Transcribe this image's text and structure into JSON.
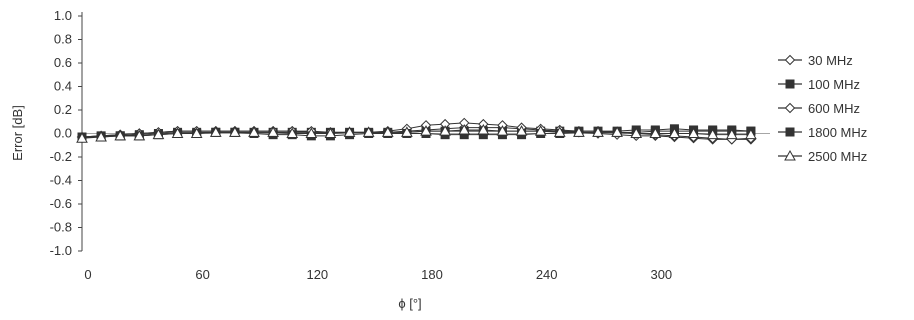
{
  "chart_data": {
    "type": "line",
    "xlabel": "ϕ [°]",
    "ylabel": "Error [dB]",
    "xlim": [
      0,
      360
    ],
    "ylim": [
      -1.0,
      1.0
    ],
    "x_ticks": [
      0,
      60,
      120,
      180,
      240,
      300
    ],
    "x_tick_labels": [
      "0",
      "60",
      "120",
      "180",
      "240",
      "300"
    ],
    "y_ticks": [
      1.0,
      0.8,
      0.6,
      0.4,
      0.2,
      0.0,
      -0.2,
      -0.4,
      -0.6,
      -0.8,
      -1.0
    ],
    "y_tick_labels": [
      "1.0",
      "0.8",
      "0.6",
      "0.4",
      "0.2",
      "0.0",
      "-0.2",
      "-0.4",
      "-0.6",
      "-0.8",
      "-1.0"
    ],
    "grid": false,
    "legend_position": "right",
    "x": [
      0,
      10,
      20,
      30,
      40,
      50,
      60,
      70,
      80,
      90,
      100,
      110,
      120,
      130,
      140,
      150,
      160,
      170,
      180,
      190,
      200,
      210,
      220,
      230,
      240,
      250,
      260,
      270,
      280,
      290,
      300,
      310,
      320,
      330,
      340,
      350
    ],
    "series": [
      {
        "name": "30 MHz",
        "marker": "diamond-open",
        "values": [
          -0.03,
          -0.02,
          -0.01,
          0.0,
          0.01,
          0.02,
          0.02,
          0.02,
          0.02,
          0.02,
          0.02,
          0.02,
          0.01,
          0.01,
          0.01,
          0.01,
          0.01,
          0.02,
          0.03,
          0.04,
          0.05,
          0.05,
          0.05,
          0.04,
          0.03,
          0.02,
          0.01,
          0.0,
          -0.01,
          -0.02,
          -0.02,
          -0.03,
          -0.04,
          -0.05,
          -0.05,
          -0.05
        ]
      },
      {
        "name": "100 MHz",
        "marker": "square-filled",
        "values": [
          -0.03,
          -0.02,
          -0.02,
          -0.01,
          0.0,
          0.01,
          0.01,
          0.01,
          0.01,
          0.01,
          0.01,
          0.01,
          0.01,
          0.01,
          0.01,
          0.01,
          0.01,
          0.01,
          0.02,
          0.02,
          0.02,
          0.02,
          0.02,
          0.02,
          0.02,
          0.02,
          0.02,
          0.02,
          0.02,
          0.03,
          0.03,
          0.04,
          0.03,
          0.03,
          0.03,
          0.02
        ]
      },
      {
        "name": "600 MHz",
        "marker": "diamond-open",
        "values": [
          -0.03,
          -0.02,
          -0.01,
          0.0,
          0.01,
          0.02,
          0.02,
          0.02,
          0.02,
          0.02,
          0.02,
          0.02,
          0.02,
          0.01,
          0.01,
          0.01,
          0.02,
          0.04,
          0.07,
          0.08,
          0.09,
          0.08,
          0.07,
          0.05,
          0.04,
          0.03,
          0.02,
          0.02,
          0.01,
          0.0,
          -0.01,
          -0.02,
          -0.03,
          -0.04,
          -0.05,
          -0.04
        ]
      },
      {
        "name": "1800 MHz",
        "marker": "square-filled",
        "values": [
          -0.03,
          -0.03,
          -0.02,
          -0.02,
          -0.01,
          0.0,
          0.0,
          0.01,
          0.01,
          0.0,
          -0.01,
          -0.01,
          -0.02,
          -0.02,
          -0.01,
          0.0,
          0.0,
          0.0,
          0.0,
          -0.01,
          -0.01,
          -0.01,
          -0.01,
          -0.01,
          0.0,
          0.0,
          0.01,
          0.01,
          0.01,
          0.01,
          0.02,
          0.02,
          0.02,
          0.02,
          0.02,
          0.02
        ]
      },
      {
        "name": "2500 MHz",
        "marker": "triangle-open",
        "values": [
          -0.04,
          -0.03,
          -0.02,
          -0.02,
          -0.01,
          0.0,
          0.0,
          0.01,
          0.01,
          0.01,
          0.01,
          0.0,
          0.0,
          0.0,
          0.01,
          0.01,
          0.01,
          0.01,
          0.02,
          0.02,
          0.03,
          0.03,
          0.02,
          0.02,
          0.02,
          0.01,
          0.01,
          0.01,
          0.01,
          0.0,
          0.0,
          0.0,
          0.0,
          -0.01,
          -0.01,
          -0.01
        ]
      }
    ],
    "colors": {
      "line": "#333333",
      "axis": "#444444",
      "background": "#ffffff"
    }
  }
}
